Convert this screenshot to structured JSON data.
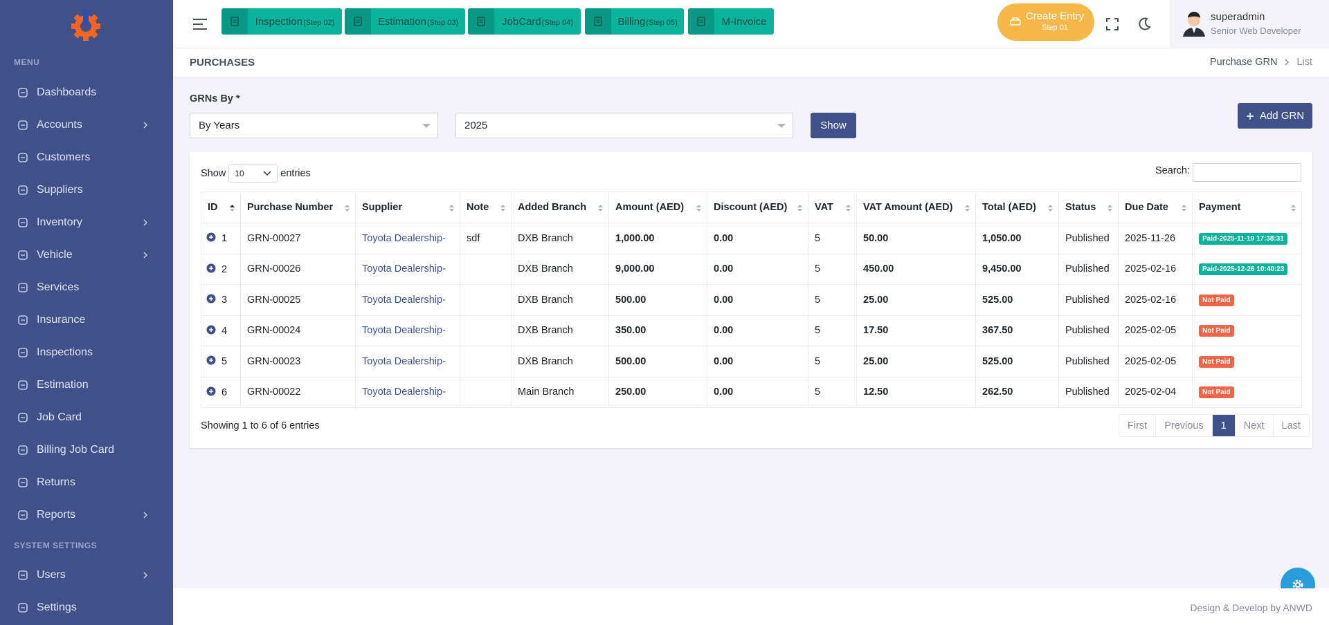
{
  "sidebar": {
    "menu_title": "MENU",
    "items": [
      {
        "label": "Dashboards",
        "has_submenu": false
      },
      {
        "label": "Accounts",
        "has_submenu": true
      },
      {
        "label": "Customers",
        "has_submenu": false
      },
      {
        "label": "Suppliers",
        "has_submenu": false
      },
      {
        "label": "Inventory",
        "has_submenu": true
      },
      {
        "label": "Vehicle",
        "has_submenu": true
      },
      {
        "label": "Services",
        "has_submenu": false
      },
      {
        "label": "Insurance",
        "has_submenu": false
      },
      {
        "label": "Inspections",
        "has_submenu": false
      },
      {
        "label": "Estimation",
        "has_submenu": false
      },
      {
        "label": "Job Card",
        "has_submenu": false
      },
      {
        "label": "Billing Job Card",
        "has_submenu": false
      },
      {
        "label": "Returns",
        "has_submenu": false
      },
      {
        "label": "Reports",
        "has_submenu": true
      }
    ],
    "settings_title": "SYSTEM SETTINGS",
    "settings_items": [
      {
        "label": "Users",
        "has_submenu": true
      },
      {
        "label": "Settings",
        "has_submenu": false
      }
    ]
  },
  "topbar": {
    "shortcuts": [
      {
        "label": "Inspection",
        "step": "(Step 02)"
      },
      {
        "label": "Estimation",
        "step": "(Step 03)"
      },
      {
        "label": "JobCard",
        "step": "(Step 04)"
      },
      {
        "label": "Billing",
        "step": "(Step 05)"
      },
      {
        "label": "M-Invoice",
        "step": null
      }
    ],
    "create_entry": {
      "label": "Create Entry",
      "step": "Step 01"
    },
    "user": {
      "name": "superadmin",
      "role": "Senior Web Developer"
    }
  },
  "page": {
    "title": "PURCHASES",
    "breadcrumb": [
      "Purchase GRN",
      "List"
    ]
  },
  "filter": {
    "label": "GRNs By *",
    "mode": "By Years",
    "year": "2025",
    "show": "Show",
    "add": "Add GRN"
  },
  "table": {
    "length_prefix": "Show",
    "length": "10",
    "length_suffix": "entries",
    "search_label": "Search:",
    "columns": [
      "ID",
      "Purchase Number",
      "Supplier",
      "Note",
      "Added Branch",
      "Amount (AED)",
      "Discount (AED)",
      "VAT",
      "VAT Amount (AED)",
      "Total (AED)",
      "Status",
      "Due Date",
      "Payment"
    ],
    "rows": [
      {
        "cells": [
          "1",
          "GRN-00027",
          "Toyota Dealership-",
          "sdf",
          "DXB Branch",
          "1,000.00",
          "0.00",
          "5",
          "50.00",
          "1,050.00",
          "Published",
          "2025-11-26",
          "Paid-2025-11-19 17:38:31"
        ],
        "paid": true
      },
      {
        "cells": [
          "2",
          "GRN-00026",
          "Toyota Dealership-",
          "",
          "DXB Branch",
          "9,000.00",
          "0.00",
          "5",
          "450.00",
          "9,450.00",
          "Published",
          "2025-02-16",
          "Paid-2025-12-26 10:40:23"
        ],
        "paid": true
      },
      {
        "cells": [
          "3",
          "GRN-00025",
          "Toyota Dealership-",
          "",
          "DXB Branch",
          "500.00",
          "0.00",
          "5",
          "25.00",
          "525.00",
          "Published",
          "2025-02-16",
          "Not Paid"
        ],
        "paid": false
      },
      {
        "cells": [
          "4",
          "GRN-00024",
          "Toyota Dealership-",
          "",
          "DXB Branch",
          "350.00",
          "0.00",
          "5",
          "17.50",
          "367.50",
          "Published",
          "2025-02-05",
          "Not Paid"
        ],
        "paid": false
      },
      {
        "cells": [
          "5",
          "GRN-00023",
          "Toyota Dealership-",
          "",
          "DXB Branch",
          "500.00",
          "0.00",
          "5",
          "25.00",
          "525.00",
          "Published",
          "2025-02-05",
          "Not Paid"
        ],
        "paid": false
      },
      {
        "cells": [
          "6",
          "GRN-00022",
          "Toyota Dealership-",
          "",
          "Main Branch",
          "250.00",
          "0.00",
          "5",
          "12.50",
          "262.50",
          "Published",
          "2025-02-04",
          "Not Paid"
        ],
        "paid": false
      }
    ],
    "info": "Showing 1 to 6 of 6 entries",
    "pagination": [
      "First",
      "Previous",
      "1",
      "Next",
      "Last"
    ],
    "current_page_index": 2
  },
  "footer": "Design & Develop by ANWD"
}
